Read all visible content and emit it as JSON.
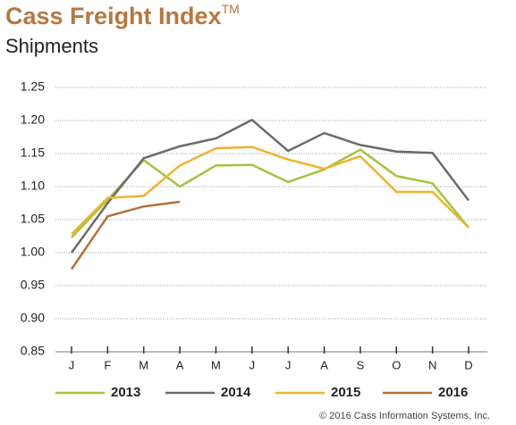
{
  "chart_data": {
    "type": "line",
    "title": "Cass Freight Index",
    "title_mark": "TM",
    "subtitle": "Shipments",
    "source": "© 2016 Cass Information Systems, Inc.",
    "categories": [
      "J",
      "F",
      "M",
      "A",
      "M",
      "J",
      "J",
      "A",
      "S",
      "O",
      "N",
      "D"
    ],
    "series": [
      {
        "name": "2013",
        "color": "#a3c43f",
        "values": [
          1.023,
          1.08,
          1.14,
          1.1,
          1.132,
          1.133,
          1.107,
          1.126,
          1.156,
          1.116,
          1.105,
          1.038
        ]
      },
      {
        "name": "2014",
        "color": "#6b6b6b",
        "values": [
          1.0,
          1.075,
          1.143,
          1.161,
          1.173,
          1.201,
          1.154,
          1.181,
          1.163,
          1.153,
          1.151,
          1.079
        ]
      },
      {
        "name": "2015",
        "color": "#f0b32e",
        "values": [
          1.028,
          1.083,
          1.086,
          1.132,
          1.158,
          1.16,
          1.141,
          1.127,
          1.146,
          1.092,
          1.092,
          1.038
        ]
      },
      {
        "name": "2016",
        "color": "#b5703a",
        "values": [
          0.975,
          1.055,
          1.07,
          1.077,
          null,
          null,
          null,
          null,
          null,
          null,
          null,
          null
        ]
      }
    ],
    "ylim": [
      0.85,
      1.25
    ],
    "yticks": [
      0.85,
      {
        "value": 0.9,
        "label": "0.90"
      },
      0.95,
      {
        "value": 1,
        "label": "1.00"
      },
      1.05,
      {
        "value": 1.1,
        "label": "1.10"
      },
      1.15,
      {
        "value": 1.2,
        "label": "1.20"
      },
      1.25
    ],
    "grid": true,
    "legend": "bottom"
  }
}
